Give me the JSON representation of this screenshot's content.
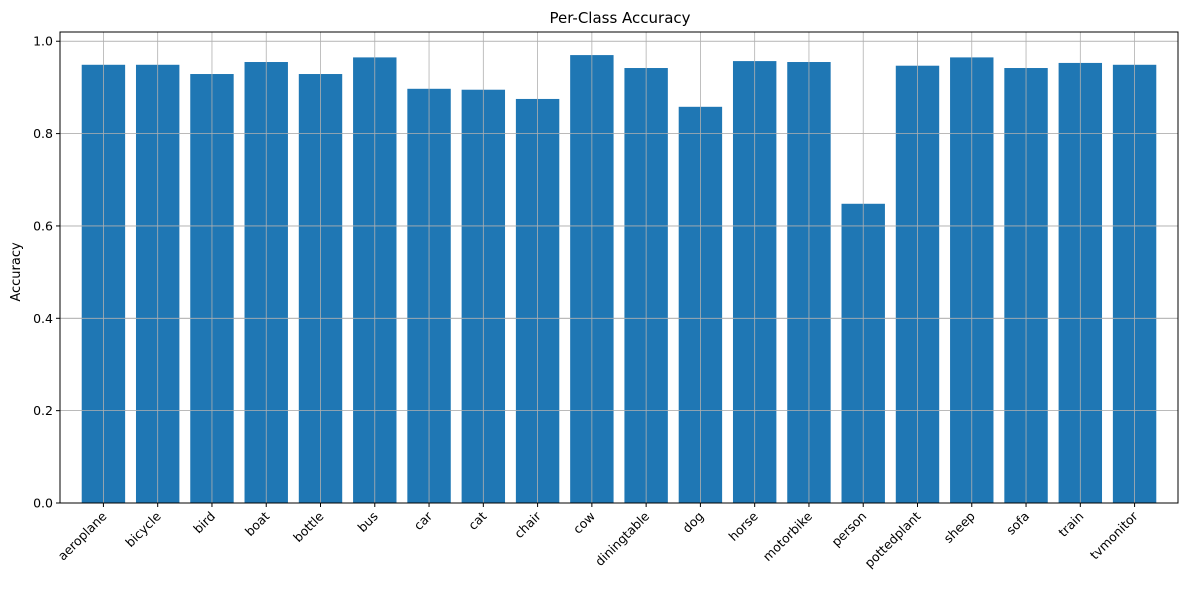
{
  "chart_data": {
    "type": "bar",
    "title": "Per-Class Accuracy",
    "xlabel": "",
    "ylabel": "Accuracy",
    "categories": [
      "aeroplane",
      "bicycle",
      "bird",
      "boat",
      "bottle",
      "bus",
      "car",
      "cat",
      "chair",
      "cow",
      "diningtable",
      "dog",
      "horse",
      "motorbike",
      "person",
      "pottedplant",
      "sheep",
      "sofa",
      "train",
      "tvmonitor"
    ],
    "values": [
      0.949,
      0.949,
      0.929,
      0.955,
      0.929,
      0.965,
      0.897,
      0.895,
      0.875,
      0.97,
      0.942,
      0.858,
      0.957,
      0.955,
      0.648,
      0.947,
      0.965,
      0.942,
      0.953,
      0.949
    ],
    "ylim": [
      0,
      1.02
    ],
    "yticks": [
      0.0,
      0.2,
      0.4,
      0.6,
      0.8,
      1.0
    ],
    "ytick_labels": [
      "0.0",
      "0.2",
      "0.4",
      "0.6",
      "0.8",
      "1.0"
    ],
    "grid": true,
    "bar_color": "#1f77b4",
    "grid_color": "#b0b0b0"
  }
}
